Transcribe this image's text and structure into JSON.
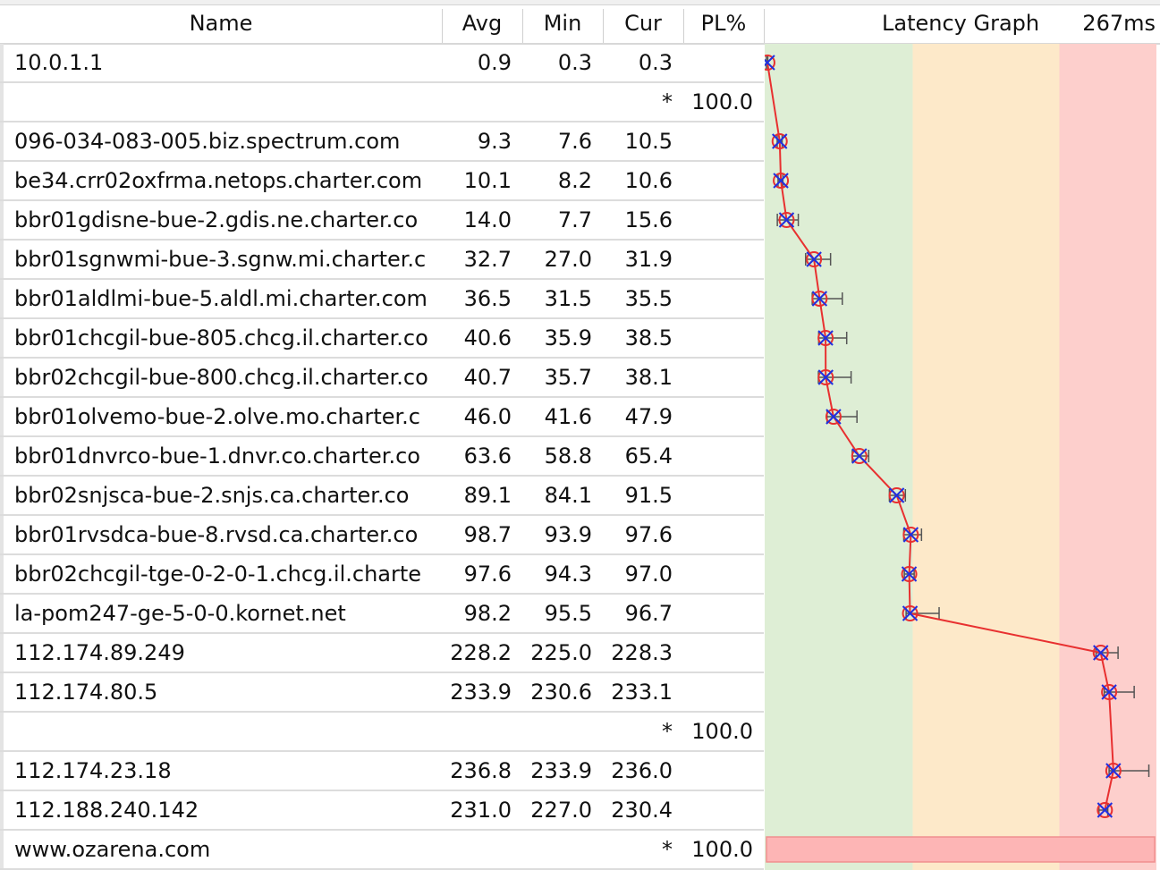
{
  "columns": {
    "name": "Name",
    "avg": "Avg",
    "min": "Min",
    "cur": "Cur",
    "pl": "PL%",
    "graph": "Latency Graph",
    "scale": "267ms"
  },
  "colors": {
    "zone_good": "#deeed5",
    "zone_warn": "#fde9c9",
    "zone_bad": "#fdcfcc",
    "line": "#e83030",
    "cross": "#2030e0",
    "whisker": "#555555"
  },
  "graph": {
    "max_ms": 267,
    "zones_ms": [
      100,
      200
    ]
  },
  "hops": [
    {
      "name": "10.0.1.1",
      "avg": "0.9",
      "min": "0.3",
      "cur": "0.3",
      "pl": "",
      "max": "1.2"
    },
    {
      "name": "",
      "avg": "",
      "min": "",
      "cur": "*",
      "pl": "100.0"
    },
    {
      "name": "096-034-083-005.biz.spectrum.com",
      "avg": "9.3",
      "min": "7.6",
      "cur": "10.5",
      "pl": "",
      "max": "11.0"
    },
    {
      "name": "be34.crr02oxfrma.netops.charter.com",
      "avg": "10.1",
      "min": "8.2",
      "cur": "10.6",
      "pl": "",
      "max": "11.5"
    },
    {
      "name": "bbr01gdisne-bue-2.gdis.ne.charter.co",
      "avg": "14.0",
      "min": "7.7",
      "cur": "15.6",
      "pl": "",
      "max": "22.0"
    },
    {
      "name": "bbr01sgnwmi-bue-3.sgnw.mi.charter.c",
      "avg": "32.7",
      "min": "27.0",
      "cur": "31.9",
      "pl": "",
      "max": "44.0"
    },
    {
      "name": "bbr01aldlmi-bue-5.aldl.mi.charter.com",
      "avg": "36.5",
      "min": "31.5",
      "cur": "35.5",
      "pl": "",
      "max": "52.0"
    },
    {
      "name": "bbr01chcgil-bue-805.chcg.il.charter.co",
      "avg": "40.6",
      "min": "35.9",
      "cur": "38.5",
      "pl": "",
      "max": "55.0"
    },
    {
      "name": "bbr02chcgil-bue-800.chcg.il.charter.co",
      "avg": "40.7",
      "min": "35.7",
      "cur": "38.1",
      "pl": "",
      "max": "58.0"
    },
    {
      "name": "bbr01olvemo-bue-2.olve.mo.charter.c",
      "avg": "46.0",
      "min": "41.6",
      "cur": "47.9",
      "pl": "",
      "max": "62.0"
    },
    {
      "name": "bbr01dnvrco-bue-1.dnvr.co.charter.co",
      "avg": "63.6",
      "min": "58.8",
      "cur": "65.4",
      "pl": "",
      "max": "70.0"
    },
    {
      "name": "bbr02snjsca-bue-2.snjs.ca.charter.co",
      "avg": "89.1",
      "min": "84.1",
      "cur": "91.5",
      "pl": "",
      "max": "95.0"
    },
    {
      "name": "bbr01rvsdca-bue-8.rvsd.ca.charter.co",
      "avg": "98.7",
      "min": "93.9",
      "cur": "97.6",
      "pl": "",
      "max": "106.0"
    },
    {
      "name": "bbr02chcgil-tge-0-2-0-1.chcg.il.charte",
      "avg": "97.6",
      "min": "94.3",
      "cur": "97.0",
      "pl": "",
      "max": "101.0"
    },
    {
      "name": "la-pom247-ge-5-0-0.kornet.net",
      "avg": "98.2",
      "min": "95.5",
      "cur": "96.7",
      "pl": "",
      "max": "118.0"
    },
    {
      "name": "112.174.89.249",
      "avg": "228.2",
      "min": "225.0",
      "cur": "228.3",
      "pl": "",
      "max": "240.0"
    },
    {
      "name": "112.174.80.5",
      "avg": "233.9",
      "min": "230.6",
      "cur": "233.1",
      "pl": "",
      "max": "251.0"
    },
    {
      "name": "",
      "avg": "",
      "min": "",
      "cur": "*",
      "pl": "100.0"
    },
    {
      "name": "112.174.23.18",
      "avg": "236.8",
      "min": "233.9",
      "cur": "236.0",
      "pl": "",
      "max": "261.0"
    },
    {
      "name": "112.188.240.142",
      "avg": "231.0",
      "min": "227.0",
      "cur": "230.4",
      "pl": "",
      "max": "233.0"
    },
    {
      "name": "www.ozarena.com",
      "avg": "",
      "min": "",
      "cur": "*",
      "pl": "100.0"
    }
  ]
}
